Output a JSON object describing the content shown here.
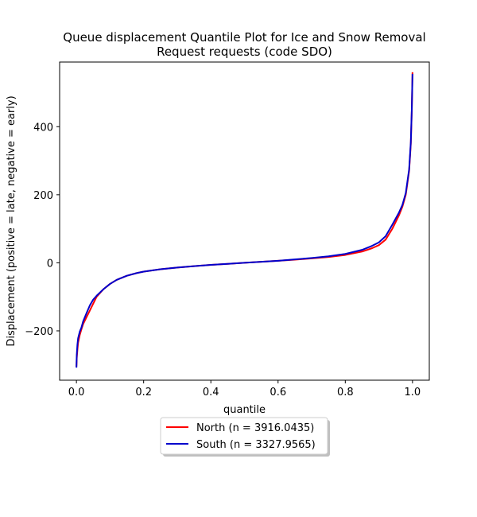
{
  "chart_data": {
    "type": "line",
    "title": "Queue displacement Quantile Plot for Ice and Snow Removal\nRequest  requests (code SDO)",
    "xlabel": "quantile",
    "ylabel": "Displacement (positive = late, negative = early)",
    "xlim": [
      -0.05,
      1.05
    ],
    "ylim": [
      -345,
      590
    ],
    "xticks": [
      0.0,
      0.2,
      0.4,
      0.6,
      0.8,
      1.0
    ],
    "xtick_labels": [
      "0.0",
      "0.2",
      "0.4",
      "0.6",
      "0.8",
      "1.0"
    ],
    "yticks": [
      -200,
      0,
      200,
      400
    ],
    "ytick_labels": [
      "−200",
      "0",
      "200",
      "400"
    ],
    "grid": false,
    "legend_position": "bottom-center",
    "series": [
      {
        "name": "North (n = 3916.0435)",
        "color": "#ff0000",
        "x": [
          0.0,
          0.001,
          0.003,
          0.005,
          0.01,
          0.015,
          0.02,
          0.03,
          0.04,
          0.05,
          0.06,
          0.08,
          0.1,
          0.12,
          0.15,
          0.18,
          0.2,
          0.25,
          0.3,
          0.35,
          0.4,
          0.45,
          0.5,
          0.55,
          0.6,
          0.65,
          0.7,
          0.75,
          0.8,
          0.85,
          0.88,
          0.9,
          0.92,
          0.94,
          0.96,
          0.97,
          0.98,
          0.99,
          0.995,
          0.998,
          1.0
        ],
        "y": [
          -305,
          -280,
          -255,
          -235,
          -212,
          -195,
          -180,
          -160,
          -140,
          -120,
          -100,
          -78,
          -62,
          -50,
          -38,
          -30,
          -26,
          -19,
          -14,
          -10,
          -6,
          -3,
          0,
          3,
          6,
          9,
          13,
          17,
          23,
          33,
          43,
          52,
          68,
          100,
          140,
          165,
          200,
          270,
          350,
          450,
          560
        ]
      },
      {
        "name": "South (n = 3327.9565)",
        "color": "#0000cc",
        "x": [
          0.0,
          0.001,
          0.003,
          0.005,
          0.01,
          0.015,
          0.02,
          0.03,
          0.04,
          0.05,
          0.06,
          0.08,
          0.1,
          0.12,
          0.15,
          0.18,
          0.2,
          0.25,
          0.3,
          0.35,
          0.4,
          0.45,
          0.5,
          0.55,
          0.6,
          0.65,
          0.7,
          0.75,
          0.8,
          0.85,
          0.88,
          0.9,
          0.92,
          0.94,
          0.96,
          0.97,
          0.98,
          0.99,
          0.995,
          0.998,
          1.0
        ],
        "y": [
          -308,
          -270,
          -240,
          -222,
          -202,
          -190,
          -172,
          -148,
          -125,
          -108,
          -97,
          -78,
          -62,
          -50,
          -38,
          -30,
          -26,
          -19,
          -14,
          -10,
          -6,
          -3,
          0,
          3,
          6,
          10,
          14,
          19,
          26,
          38,
          50,
          60,
          78,
          112,
          148,
          170,
          205,
          275,
          355,
          455,
          555
        ]
      }
    ]
  }
}
